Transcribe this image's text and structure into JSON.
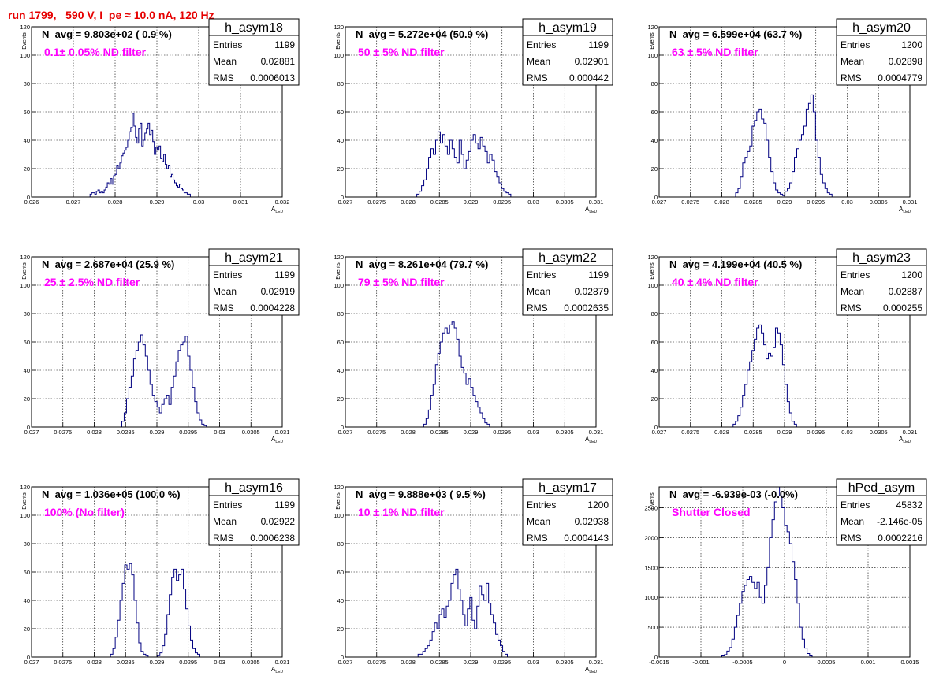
{
  "header": {
    "title": "run 1799,   590 V, I_pe ≈ 10.0 nA, 120 Hz"
  },
  "colors": {
    "hist": "#000080",
    "title": "#e60000",
    "annotation": "#ff00ff",
    "grid": "#000000"
  },
  "chart_data": [
    {
      "type": "histogram",
      "name": "h_asym18",
      "nav": "N_avg = 9.803e+02 ( 0.9 %)",
      "filter": "0.1± 0.05% ND filter",
      "stats": {
        "Entries": "1199",
        "Mean": "0.02881",
        "RMS": "0.0006013"
      },
      "xlabel": "A",
      "xlabel_sub": "LED",
      "ylabel": "Events",
      "xlim": [
        0.026,
        0.032
      ],
      "ylim": [
        0,
        120
      ],
      "xticks": [
        0.026,
        0.027,
        0.028,
        0.029,
        0.03,
        0.031,
        0.032
      ],
      "xticklabels": [
        "0.026",
        "0.027",
        "0.028",
        "0.029",
        "0.03",
        "0.031",
        "0.032"
      ],
      "yticks": [
        0,
        20,
        40,
        60,
        80,
        100,
        120
      ],
      "yticklabels": [
        "0",
        "20",
        "40",
        "60",
        "80",
        "100",
        "120"
      ],
      "bins": {
        "start": 0.0274,
        "width": 3.75e-05,
        "values": [
          2,
          3,
          3,
          2,
          4,
          5,
          3,
          4,
          3,
          5,
          7,
          10,
          9,
          13,
          9,
          15,
          16,
          22,
          20,
          24,
          29,
          31,
          33,
          35,
          40,
          46,
          49,
          59,
          50,
          42,
          38,
          48,
          52,
          36,
          40,
          45,
          48,
          52,
          44,
          47,
          39,
          30,
          35,
          33,
          36,
          27,
          25,
          30,
          23,
          20,
          22,
          14,
          16,
          12,
          10,
          8,
          7,
          9,
          6,
          5,
          3,
          3,
          2,
          2
        ]
      }
    },
    {
      "type": "histogram",
      "name": "h_asym19",
      "nav": "N_avg = 5.272e+04 (50.9 %)",
      "filter": "50 ± 5% ND filter",
      "stats": {
        "Entries": "1199",
        "Mean": "0.02901",
        "RMS": "0.000442"
      },
      "xlabel": "A",
      "xlabel_sub": "LED",
      "ylabel": "Events",
      "xlim": [
        0.027,
        0.031
      ],
      "ylim": [
        0,
        120
      ],
      "xticks": [
        0.027,
        0.0275,
        0.028,
        0.0285,
        0.029,
        0.0295,
        0.03,
        0.0305,
        0.031
      ],
      "xticklabels": [
        "0.027",
        "0.0275",
        "0.028",
        "0.0285",
        "0.029",
        "0.0295",
        "0.03",
        "0.0305",
        "0.031"
      ],
      "yticks": [
        0,
        20,
        40,
        60,
        80,
        100,
        120
      ],
      "yticklabels": [
        "0",
        "20",
        "40",
        "60",
        "80",
        "100",
        "120"
      ],
      "bins": {
        "start": 0.02814,
        "width": 3.75e-05,
        "values": [
          2,
          4,
          8,
          12,
          20,
          28,
          34,
          30,
          40,
          46,
          38,
          44,
          36,
          30,
          40,
          34,
          28,
          24,
          40,
          30,
          20,
          26,
          32,
          40,
          44,
          38,
          34,
          42,
          36,
          32,
          24,
          30,
          26,
          18,
          14,
          10,
          6,
          4,
          3,
          2
        ]
      }
    },
    {
      "type": "histogram",
      "name": "h_asym20",
      "nav": "N_avg = 6.599e+04 (63.7 %)",
      "filter": "63 ± 5% ND filter",
      "stats": {
        "Entries": "1200",
        "Mean": "0.02898",
        "RMS": "0.0004779"
      },
      "xlabel": "A",
      "xlabel_sub": "LED",
      "ylabel": "Events",
      "xlim": [
        0.027,
        0.031
      ],
      "ylim": [
        0,
        120
      ],
      "xticks": [
        0.027,
        0.0275,
        0.028,
        0.0285,
        0.029,
        0.0295,
        0.03,
        0.0305,
        0.031
      ],
      "xticklabels": [
        "0.027",
        "0.0275",
        "0.028",
        "0.0285",
        "0.029",
        "0.0295",
        "0.03",
        "0.0305",
        "0.031"
      ],
      "yticks": [
        0,
        20,
        40,
        60,
        80,
        100,
        120
      ],
      "yticklabels": [
        "0",
        "20",
        "40",
        "60",
        "80",
        "100",
        "120"
      ],
      "bins": {
        "start": 0.02822,
        "width": 3.75e-05,
        "values": [
          3,
          6,
          14,
          24,
          28,
          32,
          36,
          50,
          54,
          60,
          62,
          55,
          52,
          40,
          28,
          18,
          10,
          5,
          3,
          2,
          1,
          4,
          6,
          10,
          18,
          28,
          34,
          40,
          44,
          50,
          62,
          66,
          72,
          60,
          40,
          28,
          16,
          10,
          6,
          3,
          2
        ]
      }
    },
    {
      "type": "histogram",
      "name": "h_asym21",
      "nav": "N_avg = 2.687e+04 (25.9 %)",
      "filter": "25 ± 2.5% ND filter",
      "stats": {
        "Entries": "1199",
        "Mean": "0.02919",
        "RMS": "0.0004228"
      },
      "xlabel": "A",
      "xlabel_sub": "LED",
      "ylabel": "Events",
      "xlim": [
        0.027,
        0.031
      ],
      "ylim": [
        0,
        120
      ],
      "xticks": [
        0.027,
        0.0275,
        0.028,
        0.0285,
        0.029,
        0.0295,
        0.03,
        0.0305,
        0.031
      ],
      "xticklabels": [
        "0.027",
        "0.0275",
        "0.028",
        "0.0285",
        "0.029",
        "0.0295",
        "0.03",
        "0.0305",
        "0.031"
      ],
      "yticks": [
        0,
        20,
        40,
        60,
        80,
        100,
        120
      ],
      "yticklabels": [
        "0",
        "20",
        "40",
        "60",
        "80",
        "100",
        "120"
      ],
      "bins": {
        "start": 0.02844,
        "width": 3.75e-05,
        "values": [
          4,
          10,
          20,
          28,
          36,
          48,
          54,
          60,
          65,
          58,
          50,
          40,
          30,
          22,
          18,
          14,
          10,
          16,
          20,
          22,
          16,
          28,
          36,
          46,
          54,
          58,
          60,
          64,
          50,
          40,
          28,
          18,
          10,
          5,
          2,
          1
        ]
      }
    },
    {
      "type": "histogram",
      "name": "h_asym22",
      "nav": "N_avg = 8.261e+04 (79.7 %)",
      "filter": "79 ± 5% ND filter",
      "stats": {
        "Entries": "1199",
        "Mean": "0.02879",
        "RMS": "0.0002635"
      },
      "xlabel": "A",
      "xlabel_sub": "LED",
      "ylabel": "Events",
      "xlim": [
        0.027,
        0.031
      ],
      "ylim": [
        0,
        120
      ],
      "xticks": [
        0.027,
        0.0275,
        0.028,
        0.0285,
        0.029,
        0.0295,
        0.03,
        0.0305,
        0.031
      ],
      "xticklabels": [
        "0.027",
        "0.0275",
        "0.028",
        "0.0285",
        "0.029",
        "0.0295",
        "0.03",
        "0.0305",
        "0.031"
      ],
      "yticks": [
        0,
        20,
        40,
        60,
        80,
        100,
        120
      ],
      "yticklabels": [
        "0",
        "20",
        "40",
        "60",
        "80",
        "100",
        "120"
      ],
      "bins": {
        "start": 0.02825,
        "width": 3.75e-05,
        "values": [
          2,
          6,
          12,
          22,
          30,
          44,
          52,
          60,
          66,
          70,
          66,
          72,
          74,
          70,
          62,
          50,
          42,
          38,
          30,
          34,
          28,
          22,
          18,
          14,
          10,
          6,
          3,
          2
        ]
      }
    },
    {
      "type": "histogram",
      "name": "h_asym23",
      "nav": "N_avg = 4.199e+04 (40.5 %)",
      "filter": "40 ± 4% ND filter",
      "stats": {
        "Entries": "1200",
        "Mean": "0.02887",
        "RMS": "0.000255"
      },
      "xlabel": "A",
      "xlabel_sub": "LED",
      "ylabel": "Events",
      "xlim": [
        0.027,
        0.031
      ],
      "ylim": [
        0,
        120
      ],
      "xticks": [
        0.027,
        0.0275,
        0.028,
        0.0285,
        0.029,
        0.0295,
        0.03,
        0.0305,
        0.031
      ],
      "xticklabels": [
        "0.027",
        "0.0275",
        "0.028",
        "0.0285",
        "0.029",
        "0.0295",
        "0.03",
        "0.0305",
        "0.031"
      ],
      "yticks": [
        0,
        20,
        40,
        60,
        80,
        100,
        120
      ],
      "yticklabels": [
        "0",
        "20",
        "40",
        "60",
        "80",
        "100",
        "120"
      ],
      "bins": {
        "start": 0.02818,
        "width": 3.75e-05,
        "values": [
          2,
          4,
          8,
          14,
          22,
          30,
          40,
          46,
          54,
          62,
          70,
          72,
          66,
          58,
          48,
          52,
          50,
          56,
          70,
          66,
          58,
          44,
          30,
          18,
          10,
          4,
          2
        ]
      }
    },
    {
      "type": "histogram",
      "name": "h_asym16",
      "nav": "N_avg = 1.036e+05 (100.0 %)",
      "filter": "100% (No filter)",
      "stats": {
        "Entries": "1199",
        "Mean": "0.02922",
        "RMS": "0.0006238"
      },
      "xlabel": "A",
      "xlabel_sub": "LED",
      "ylabel": "Events",
      "xlim": [
        0.027,
        0.031
      ],
      "ylim": [
        0,
        120
      ],
      "xticks": [
        0.027,
        0.0275,
        0.028,
        0.0285,
        0.029,
        0.0295,
        0.03,
        0.0305,
        0.031
      ],
      "xticklabels": [
        "0.027",
        "0.0275",
        "0.028",
        "0.0285",
        "0.029",
        "0.0295",
        "0.03",
        "0.0305",
        "0.031"
      ],
      "yticks": [
        0,
        20,
        40,
        60,
        80,
        100,
        120
      ],
      "yticklabels": [
        "0",
        "20",
        "40",
        "60",
        "80",
        "100",
        "120"
      ],
      "bins": {
        "start": 0.02826,
        "width": 3.75e-05,
        "values": [
          2,
          6,
          14,
          26,
          40,
          52,
          65,
          62,
          66,
          58,
          40,
          24,
          10,
          4,
          2,
          1,
          0,
          0,
          0,
          0,
          1,
          3,
          8,
          16,
          30,
          44,
          56,
          62,
          54,
          58,
          62,
          48,
          34,
          22,
          12,
          6,
          3,
          2
        ]
      }
    },
    {
      "type": "histogram",
      "name": "h_asym17",
      "nav": "N_avg = 9.888e+03 ( 9.5 %)",
      "filter": "10 ± 1% ND filter",
      "stats": {
        "Entries": "1200",
        "Mean": "0.02938",
        "RMS": "0.0004143"
      },
      "xlabel": "A",
      "xlabel_sub": "LED",
      "ylabel": "Events",
      "xlim": [
        0.027,
        0.031
      ],
      "ylim": [
        0,
        120
      ],
      "xticks": [
        0.027,
        0.0275,
        0.028,
        0.0285,
        0.029,
        0.0295,
        0.03,
        0.0305,
        0.031
      ],
      "xticklabels": [
        "0.027",
        "0.0275",
        "0.028",
        "0.0285",
        "0.029",
        "0.0295",
        "0.03",
        "0.0305",
        "0.031"
      ],
      "yticks": [
        0,
        20,
        40,
        60,
        80,
        100,
        120
      ],
      "yticklabels": [
        "0",
        "20",
        "40",
        "60",
        "80",
        "100",
        "120"
      ],
      "bins": {
        "start": 0.02816,
        "width": 3.75e-05,
        "values": [
          2,
          2,
          4,
          6,
          8,
          12,
          18,
          24,
          20,
          30,
          34,
          28,
          36,
          40,
          52,
          58,
          62,
          48,
          40,
          30,
          22,
          34,
          42,
          26,
          20,
          36,
          50,
          44,
          40,
          52,
          38,
          30,
          24,
          16,
          12,
          8,
          4,
          2
        ]
      }
    },
    {
      "type": "histogram",
      "name": "hPed_asym",
      "nav": "N_avg = -6.939e-03 (-0.0%)",
      "filter": "Shutter Closed",
      "stats": {
        "Entries": "45832",
        "Mean": "-2.146e-05",
        "RMS": "0.0002216"
      },
      "xlabel": "",
      "xlabel_sub": "",
      "ylabel": "Events",
      "xlim": [
        -0.0015,
        0.0015
      ],
      "ylim": [
        0,
        2850
      ],
      "xticks": [
        -0.0015,
        -0.001,
        -0.0005,
        0,
        0.0005,
        0.001,
        0.0015
      ],
      "xticklabels": [
        "-0.0015",
        "-0.001",
        "-0.0005",
        "0",
        "0.0005",
        "0.001",
        "0.0015"
      ],
      "yticks": [
        0,
        500,
        1000,
        1500,
        2000,
        2500
      ],
      "yticklabels": [
        "0",
        "500",
        "1000",
        "1500",
        "2000",
        "2500"
      ],
      "bins": {
        "start": -0.00075,
        "width": 3e-05,
        "values": [
          20,
          40,
          100,
          160,
          300,
          500,
          700,
          900,
          1100,
          1200,
          1300,
          1350,
          1250,
          1150,
          1250,
          1000,
          900,
          1200,
          1500,
          2000,
          2300,
          2600,
          2850,
          2700,
          2500,
          2200,
          2100,
          1900,
          1600,
          1300,
          900,
          500,
          300,
          150,
          60,
          20
        ]
      }
    }
  ]
}
